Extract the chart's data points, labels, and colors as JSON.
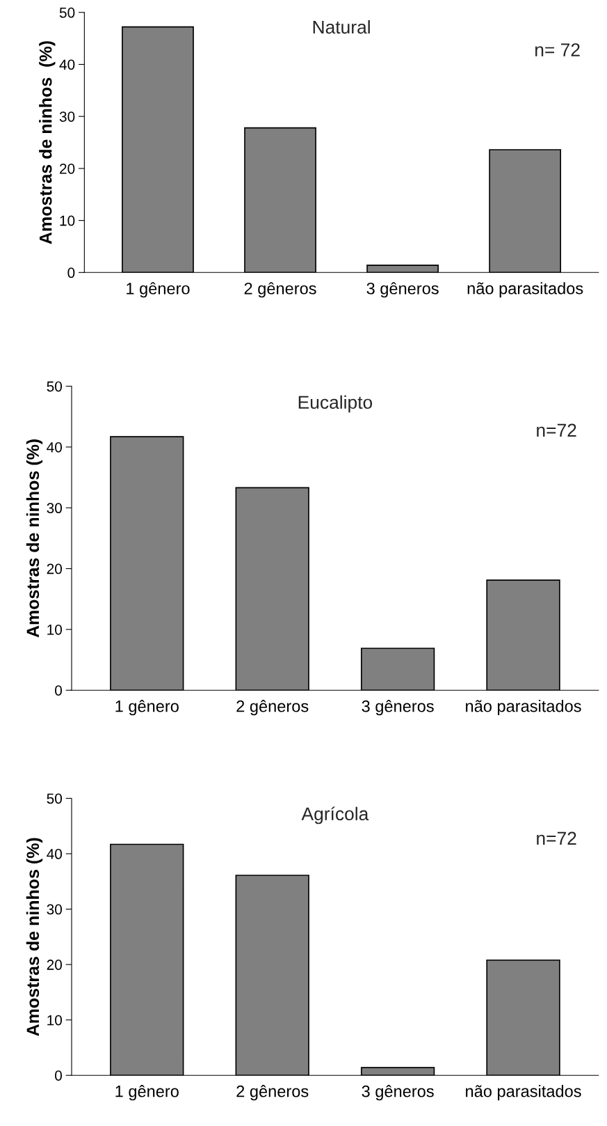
{
  "chart_data": [
    {
      "type": "bar",
      "title": "Natural",
      "ylabel": "Amostras de ninhos  (%)",
      "categories": [
        "1 gênero",
        "2 gêneros",
        "3 gêneros",
        "não parasitados"
      ],
      "values": [
        47.2,
        27.8,
        1.4,
        23.6
      ],
      "color": "#808080",
      "ylim": [
        0,
        50
      ],
      "yticks": [
        0,
        10,
        20,
        30,
        40,
        50
      ],
      "annotations": [
        "n= 72"
      ],
      "grid": false,
      "legend": false
    },
    {
      "type": "bar",
      "title": "Eucalipto",
      "ylabel": "Amostras de ninhos (%)",
      "categories": [
        "1 gênero",
        "2 gêneros",
        "3 gêneros",
        "não parasitados"
      ],
      "values": [
        41.7,
        33.3,
        6.9,
        18.1
      ],
      "color": "#808080",
      "ylim": [
        0,
        50
      ],
      "yticks": [
        0,
        10,
        20,
        30,
        40,
        50
      ],
      "annotations": [
        "n=72"
      ],
      "grid": false,
      "legend": false
    },
    {
      "type": "bar",
      "title": "Agrícola",
      "ylabel": "Amostras de ninhos (%)",
      "categories": [
        "1 gênero",
        "2 gêneros",
        "3 gêneros",
        "não parasitados"
      ],
      "values": [
        41.7,
        36.1,
        1.4,
        20.8
      ],
      "color": "#808080",
      "ylim": [
        0,
        50
      ],
      "yticks": [
        0,
        10,
        20,
        30,
        40,
        50
      ],
      "annotations": [
        "n=72"
      ],
      "grid": false,
      "legend": false
    }
  ]
}
